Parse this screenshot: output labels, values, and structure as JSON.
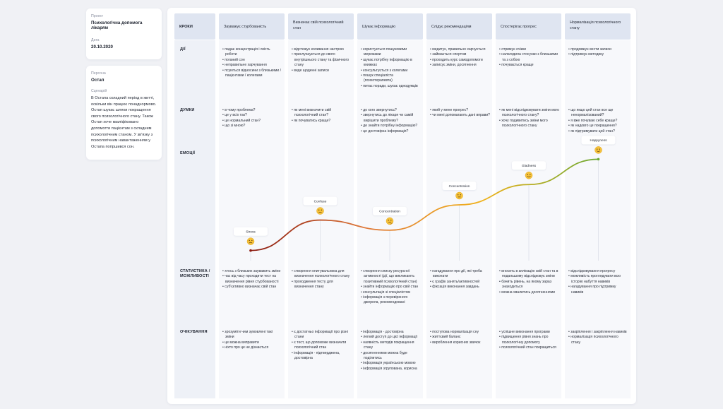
{
  "project_card": {
    "project_caption": "Проект",
    "project_value": "Психологічна допомога лікарям",
    "date_caption": "Дата",
    "date_value": "20.10.2020"
  },
  "persona_card": {
    "persona_caption": "Персона",
    "persona_value": "Остап",
    "scenario_caption": "Сценарій",
    "scenario_text": "В Остапа складний період в житті, оскільки він працює понаднормово. Остап шукає шляхи покращення свого психологічного стану. Також Остап хоче кваліфіковано допомогти пацієнтам з складним психологічним станом. У зв'язку з психологічним навантаженням у Остапа погіршився сон."
  },
  "headers": {
    "steps": "КРОКИ",
    "columns": [
      "Зауважує стурбованість",
      "Визначає свій психологічний стан",
      "Шукає інформацію",
      "Слідує рекомендаціям",
      "Спостерігає прогрес",
      "Нормалізація психологічного стану"
    ]
  },
  "row_labels": {
    "actions": "ДІЇ",
    "thoughts": "ДУМКИ",
    "emotions": "ЕМОЦІЇ",
    "stats": "СТАТИСТИКА / МОЖЛИВОСТІ",
    "expectations": "ОЧІКУВАННЯ"
  },
  "actions": [
    [
      "падає концентрація і якість роботи",
      "поганий сон",
      "неправильне харчування",
      "псуються відносини з близькими / пацієнтами / колегами"
    ],
    [
      "відстежує коливання настрою",
      "прислухаується до свого внутрішнього стану та фізичного стану",
      "веде щоденні записи"
    ],
    [
      "користується пошуковими мережами",
      "шукає потрібну інформацію в книжках",
      "консультується з колегами",
      "пошук спеціаліста (психотерапевта)",
      "питає поради, шукає однодумців"
    ],
    [
      "медитує, правильно харчується",
      "займається спортом",
      "проходить курс самодопомоги",
      "записує зміни, досягнення"
    ],
    [
      "отримує очікки",
      "налагодила стосунки з близькими та з собою",
      "почувається краще"
    ],
    [
      "продовжує вести записи",
      "підтримує методику"
    ]
  ],
  "thoughts": [
    [
      "в чому проблема?",
      "це у всіх так?",
      "це нормальний стан?",
      "що зі мною?"
    ],
    [
      "як мені визначити свій психологічний стан?",
      "як почуватись краще?"
    ],
    [
      "до кого звернутись?",
      "звернутись до лікаря чи самій вирішити проблему?",
      "де знайти потрібну інформацію?",
      "це достовірна інформація?"
    ],
    [
      "який у мене прогрес?",
      "чи мені допомагають дані вправи?"
    ],
    [
      "як мені відслідковувати зміни мого психологічного стану?",
      "хочу подивитись зміни мого психологічного стану"
    ],
    [
      "що якщо цей стан все ще ненормалізований?",
      "я вже почуваю себе краще?",
      "як надовго це покращення?",
      "як підтримувати цей стан?"
    ]
  ],
  "stats": [
    [
      "хтось з близьких зауважить зміни",
      "час від часу проходити тест на визначення рівня стурбованості",
      "суб'єктивно визначає свій стан"
    ],
    [
      "створення опитувальника для визначення психологічного стану",
      "проходження тесту для визначення стану"
    ],
    [
      "створення списку ресурсної активності (дії, що викликають позитивний психологічний стан)",
      "знайти інформацію про свій стан",
      "консультація зі спеціалістом",
      "інформація з перевіреного джерела, рекомендовані"
    ],
    [
      "нагадування про дії, які треба виконати",
      "є графік занять/активностей",
      "фіксація виконання завдань"
    ],
    [
      "вносить в аплікацію свій стан та в подальшому відслідковує зміни",
      "бачить рівень, на якому зараз знаходиться",
      "можна хвалитись досягненнями"
    ],
    [
      "відслідковування прогресу",
      "можливість проглядувати всю історію набуття навиків",
      "нагадування про підтримку навиків"
    ]
  ],
  "expectations": [
    [
      "зрозуміти чим зумовлені такі зміни",
      "це можна виправити",
      "ніхто про це не дізнається"
    ],
    [
      "є достатньо інформації про різні стани",
      "є тест, що допоможе визначити психологічний стан",
      "інформація - підтверджена, достовірна"
    ],
    [
      "інформація - достовірна",
      "легкий доступ до цієї інформації",
      "наявність методів покращення стану",
      "досягненнями можна буде поділитись",
      "інформація українською мовою",
      "інформація згрупована, корисна"
    ],
    [
      "поступова нормалізація сну",
      "життєвий баланс",
      "вироблення корисних звичок"
    ],
    [
      "успішне виконання програми",
      "підвищення рівня знань про психологічну допомогу",
      "психологічний стан покращиться"
    ],
    [
      "закріплення і закріплення навиків",
      "нормалізація психологічного стану"
    ]
  ],
  "chart_data": {
    "type": "line",
    "categories": [
      "Зауважує стурбованість",
      "Визначає свій психологічний стан",
      "Шукає інформацію",
      "Слідує рекомендаціям",
      "Спостерігає прогрес",
      "Нормалізація психологічного стану"
    ],
    "series": [
      {
        "values": [
          1,
          4,
          3,
          5.5,
          7.5,
          10
        ]
      }
    ],
    "point_labels": [
      "Stress",
      "Confuse",
      "Concentration",
      "Concentration",
      "Gladness",
      "Happyness"
    ],
    "point_emotions": [
      "sad",
      "neutral",
      "thinking",
      "neutral",
      "happy",
      "happy"
    ],
    "ylim": [
      0,
      11
    ],
    "gradient_colors": [
      "#8b1a10",
      "#e07a3a",
      "#f0b21c",
      "#6aa830"
    ],
    "grid": false
  }
}
